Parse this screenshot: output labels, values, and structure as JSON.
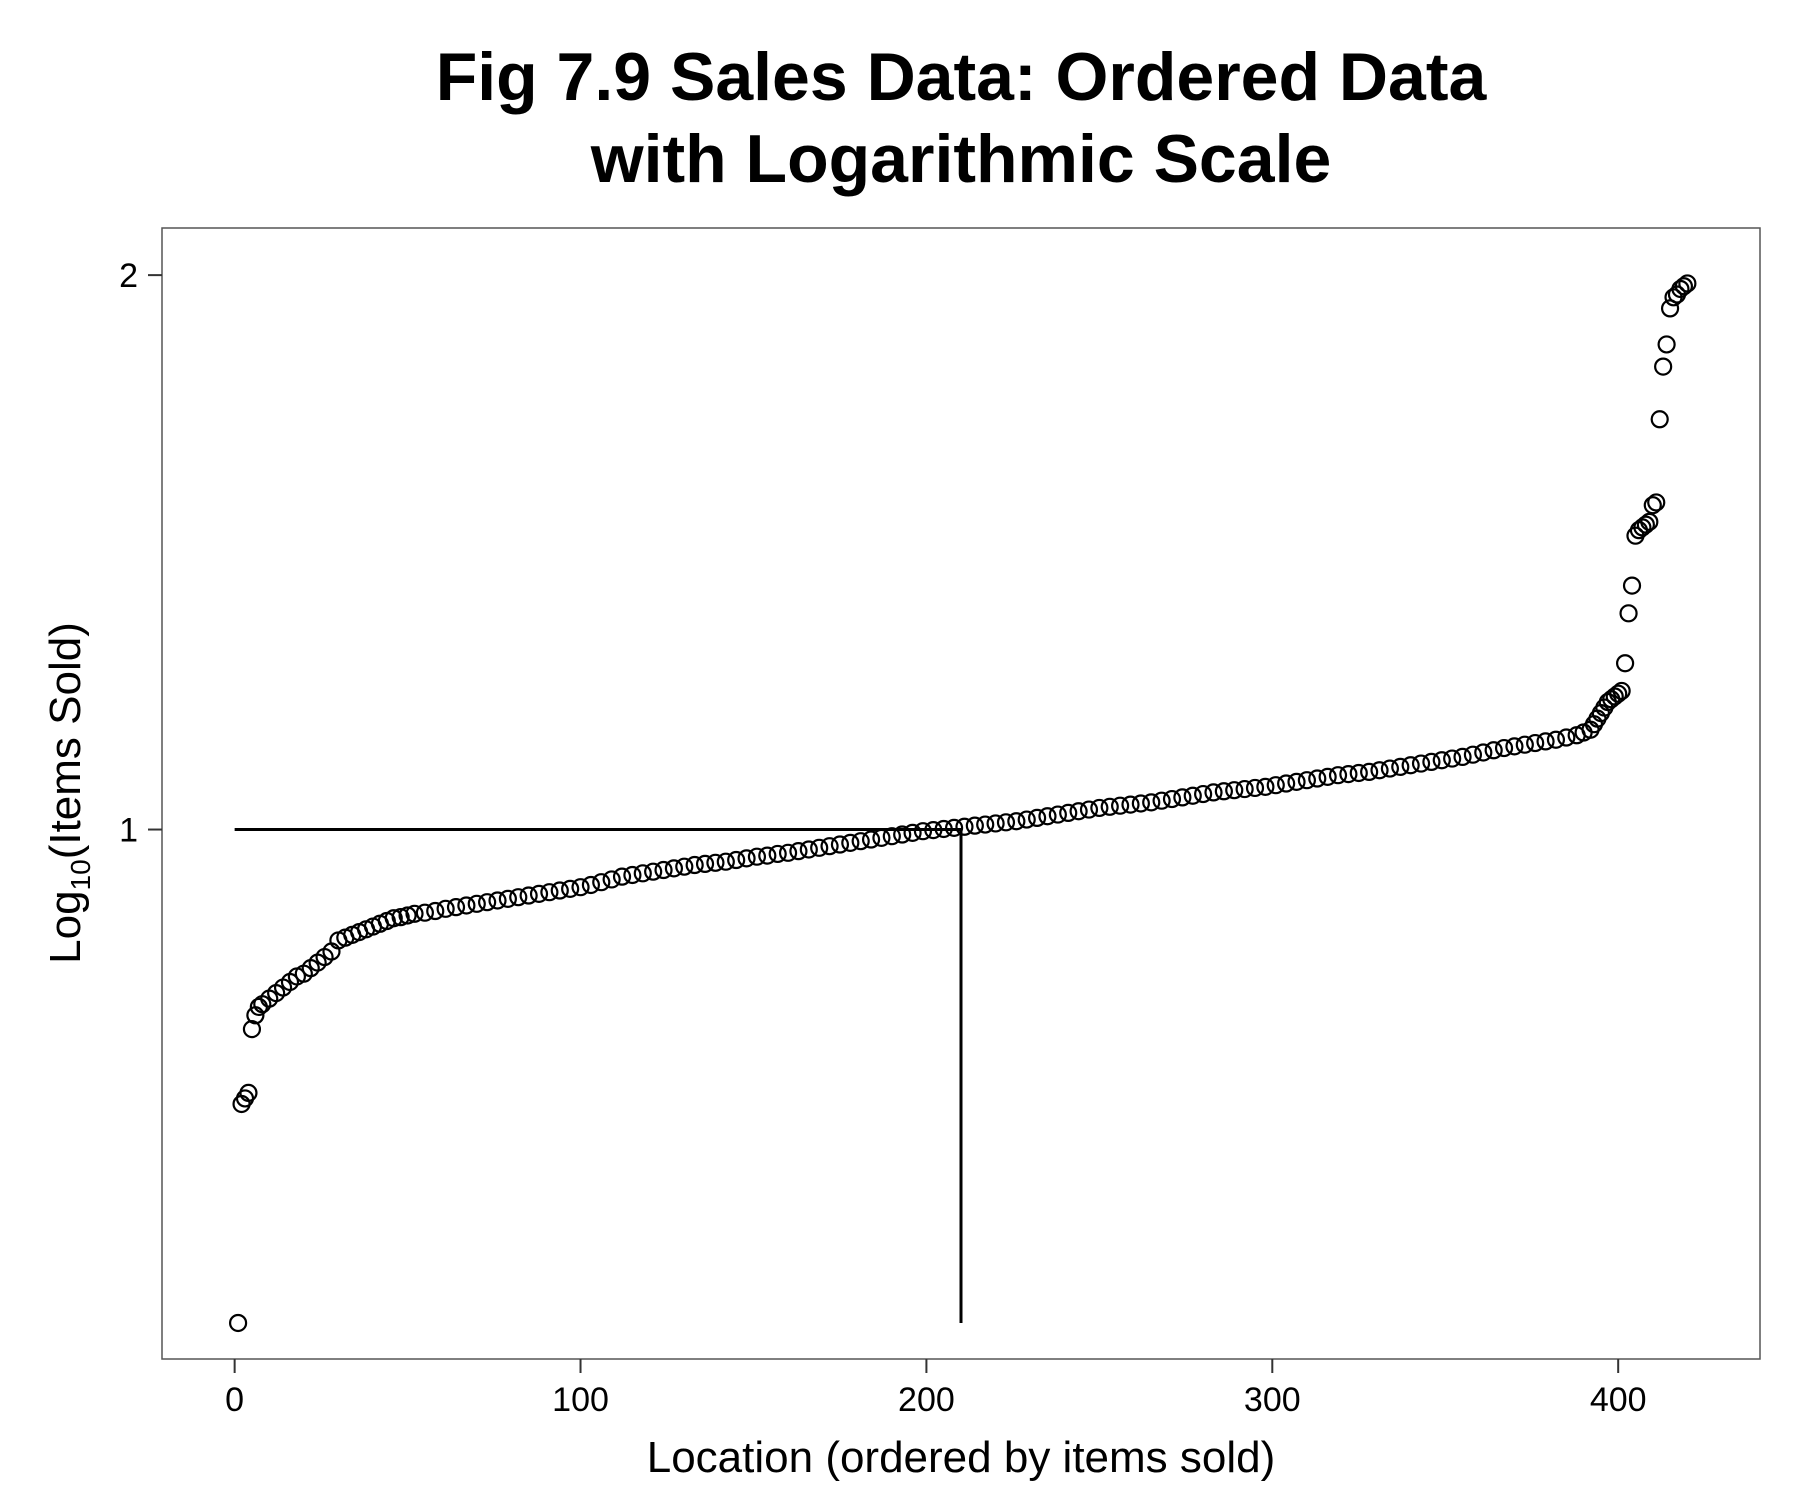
{
  "chart_data": {
    "type": "scatter",
    "title_lines": [
      "Fig 7.9 Sales Data: Ordered Data",
      "with Logarithmic Scale"
    ],
    "xlabel": "Location (ordered by items sold)",
    "ylabel_base": "Log",
    "ylabel_sub": "10",
    "ylabel_rest": "(Items Sold)",
    "xlim": [
      -21,
      441
    ],
    "ylim": [
      0.045,
      2.085
    ],
    "x_ticks": [
      {
        "value": 0,
        "label": "0"
      },
      {
        "value": 100,
        "label": "100"
      },
      {
        "value": 200,
        "label": "200"
      },
      {
        "value": 300,
        "label": "300"
      },
      {
        "value": 400,
        "label": "400"
      }
    ],
    "y_ticks": [
      {
        "value": 1,
        "label": "1"
      },
      {
        "value": 2,
        "label": "2"
      }
    ],
    "grid": false,
    "legend": "none",
    "marker": "open-circle",
    "colors": {
      "points": "#000000",
      "lines": "#000000",
      "panel_border": "#555555"
    },
    "reference_lines": [
      {
        "orientation": "horizontal",
        "y": 1.0,
        "x_from": 0,
        "x_to": 210
      },
      {
        "orientation": "vertical",
        "x": 210,
        "y_from": 0.11,
        "y_to": 1.0
      }
    ],
    "points": [
      [
        1,
        0.11
      ],
      [
        2,
        0.505
      ],
      [
        3,
        0.515
      ],
      [
        4,
        0.525
      ],
      [
        5,
        0.64
      ],
      [
        6,
        0.665
      ],
      [
        7,
        0.68
      ],
      [
        8,
        0.685
      ],
      [
        10,
        0.695
      ],
      [
        12,
        0.705
      ],
      [
        14,
        0.715
      ],
      [
        16,
        0.725
      ],
      [
        18,
        0.735
      ],
      [
        20,
        0.74
      ],
      [
        22,
        0.75
      ],
      [
        24,
        0.76
      ],
      [
        26,
        0.77
      ],
      [
        28,
        0.78
      ],
      [
        30,
        0.8
      ],
      [
        32,
        0.805
      ],
      [
        34,
        0.81
      ],
      [
        36,
        0.815
      ],
      [
        38,
        0.82
      ],
      [
        40,
        0.825
      ],
      [
        42,
        0.83
      ],
      [
        44,
        0.835
      ],
      [
        46,
        0.84
      ],
      [
        48,
        0.842
      ],
      [
        50,
        0.845
      ],
      [
        52,
        0.848
      ],
      [
        55,
        0.85
      ],
      [
        58,
        0.853
      ],
      [
        61,
        0.857
      ],
      [
        64,
        0.86
      ],
      [
        67,
        0.863
      ],
      [
        70,
        0.866
      ],
      [
        73,
        0.869
      ],
      [
        76,
        0.872
      ],
      [
        79,
        0.875
      ],
      [
        82,
        0.878
      ],
      [
        85,
        0.881
      ],
      [
        88,
        0.884
      ],
      [
        91,
        0.887
      ],
      [
        94,
        0.89
      ],
      [
        97,
        0.893
      ],
      [
        100,
        0.896
      ],
      [
        103,
        0.9
      ],
      [
        106,
        0.905
      ],
      [
        109,
        0.91
      ],
      [
        112,
        0.915
      ],
      [
        115,
        0.918
      ],
      [
        118,
        0.921
      ],
      [
        121,
        0.924
      ],
      [
        124,
        0.927
      ],
      [
        127,
        0.93
      ],
      [
        130,
        0.933
      ],
      [
        133,
        0.936
      ],
      [
        136,
        0.938
      ],
      [
        139,
        0.94
      ],
      [
        142,
        0.942
      ],
      [
        145,
        0.945
      ],
      [
        148,
        0.948
      ],
      [
        151,
        0.951
      ],
      [
        154,
        0.953
      ],
      [
        157,
        0.956
      ],
      [
        160,
        0.958
      ],
      [
        163,
        0.961
      ],
      [
        166,
        0.964
      ],
      [
        169,
        0.967
      ],
      [
        172,
        0.97
      ],
      [
        175,
        0.973
      ],
      [
        178,
        0.976
      ],
      [
        181,
        0.979
      ],
      [
        184,
        0.982
      ],
      [
        187,
        0.985
      ],
      [
        190,
        0.988
      ],
      [
        193,
        0.991
      ],
      [
        196,
        0.994
      ],
      [
        199,
        0.997
      ],
      [
        202,
        0.999
      ],
      [
        205,
        1.001
      ],
      [
        208,
        1.003
      ],
      [
        211,
        1.005
      ],
      [
        214,
        1.007
      ],
      [
        217,
        1.009
      ],
      [
        220,
        1.011
      ],
      [
        223,
        1.013
      ],
      [
        226,
        1.015
      ],
      [
        229,
        1.018
      ],
      [
        232,
        1.021
      ],
      [
        235,
        1.024
      ],
      [
        238,
        1.027
      ],
      [
        241,
        1.03
      ],
      [
        244,
        1.033
      ],
      [
        247,
        1.036
      ],
      [
        250,
        1.039
      ],
      [
        253,
        1.041
      ],
      [
        256,
        1.043
      ],
      [
        259,
        1.045
      ],
      [
        262,
        1.047
      ],
      [
        265,
        1.049
      ],
      [
        268,
        1.052
      ],
      [
        271,
        1.055
      ],
      [
        274,
        1.058
      ],
      [
        277,
        1.061
      ],
      [
        280,
        1.064
      ],
      [
        283,
        1.067
      ],
      [
        286,
        1.069
      ],
      [
        289,
        1.071
      ],
      [
        292,
        1.073
      ],
      [
        295,
        1.075
      ],
      [
        298,
        1.077
      ],
      [
        301,
        1.08
      ],
      [
        304,
        1.083
      ],
      [
        307,
        1.086
      ],
      [
        310,
        1.089
      ],
      [
        313,
        1.092
      ],
      [
        316,
        1.095
      ],
      [
        319,
        1.098
      ],
      [
        322,
        1.1
      ],
      [
        325,
        1.102
      ],
      [
        328,
        1.104
      ],
      [
        331,
        1.107
      ],
      [
        334,
        1.11
      ],
      [
        337,
        1.113
      ],
      [
        340,
        1.116
      ],
      [
        343,
        1.119
      ],
      [
        346,
        1.122
      ],
      [
        349,
        1.125
      ],
      [
        352,
        1.128
      ],
      [
        355,
        1.131
      ],
      [
        358,
        1.135
      ],
      [
        361,
        1.139
      ],
      [
        364,
        1.143
      ],
      [
        367,
        1.147
      ],
      [
        370,
        1.15
      ],
      [
        373,
        1.153
      ],
      [
        376,
        1.156
      ],
      [
        379,
        1.159
      ],
      [
        382,
        1.162
      ],
      [
        385,
        1.166
      ],
      [
        388,
        1.17
      ],
      [
        390,
        1.175
      ],
      [
        392,
        1.18
      ],
      [
        393,
        1.19
      ],
      [
        394,
        1.2
      ],
      [
        395,
        1.21
      ],
      [
        396,
        1.22
      ],
      [
        397,
        1.23
      ],
      [
        398,
        1.235
      ],
      [
        399,
        1.24
      ],
      [
        400,
        1.245
      ],
      [
        401,
        1.25
      ],
      [
        402,
        1.3
      ],
      [
        403,
        1.39
      ],
      [
        404,
        1.44
      ],
      [
        405,
        1.53
      ],
      [
        406,
        1.54
      ],
      [
        407,
        1.545
      ],
      [
        408,
        1.55
      ],
      [
        409,
        1.555
      ],
      [
        410,
        1.585
      ],
      [
        411,
        1.59
      ],
      [
        412,
        1.74
      ],
      [
        413,
        1.835
      ],
      [
        414,
        1.875
      ],
      [
        415,
        1.94
      ],
      [
        416,
        1.96
      ],
      [
        417,
        1.965
      ],
      [
        418,
        1.975
      ],
      [
        419,
        1.98
      ],
      [
        420,
        1.985
      ]
    ]
  }
}
